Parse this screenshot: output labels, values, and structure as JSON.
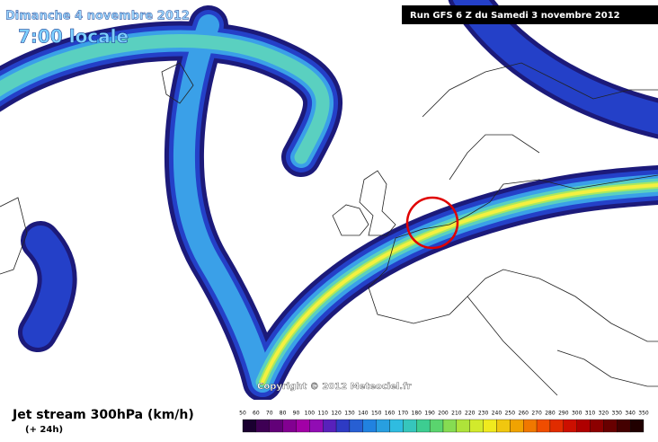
{
  "header": {
    "date": "Dimanche 4 novembre 2012",
    "time": "7:00 locale",
    "run": "Run GFS 6 Z du Samedi 3 novembre 2012"
  },
  "copyright": "Copyright © 2012 Meteociel.fr",
  "legend": {
    "title": "Jet stream 300hPa (km/h)",
    "subtitle": "(+ 24h)",
    "labels": [
      50,
      60,
      70,
      80,
      90,
      100,
      110,
      120,
      130,
      140,
      150,
      160,
      170,
      180,
      190,
      200,
      210,
      220,
      230,
      240,
      250,
      260,
      270,
      280,
      290,
      300,
      310,
      320,
      330,
      340,
      350
    ]
  }
}
